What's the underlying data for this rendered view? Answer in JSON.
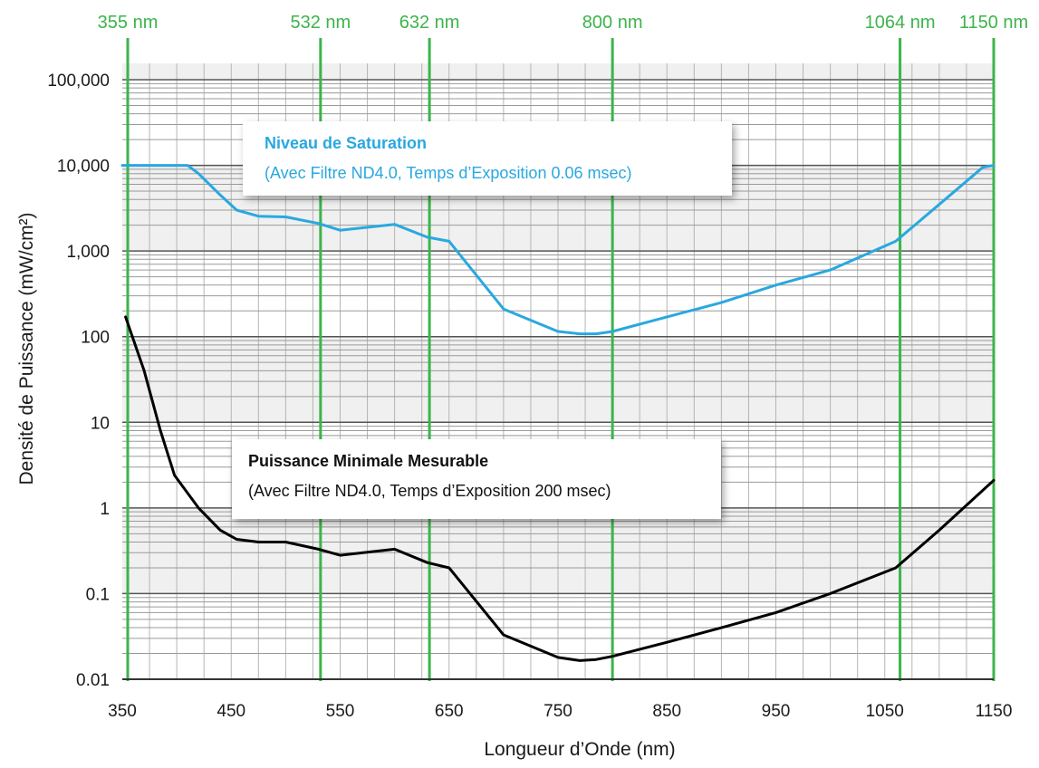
{
  "chart_data": {
    "type": "line",
    "title": "",
    "xlabel": "Longueur d’Onde (nm)",
    "ylabel": "Densité de Puissance (mW/cm²)",
    "xlim": [
      350,
      1150
    ],
    "ylim": [
      0.01,
      100000
    ],
    "y_scale": "log",
    "grid": true,
    "x_tick_labels": [
      "350",
      "450",
      "550",
      "650",
      "750",
      "850",
      "950",
      "1050",
      "1150"
    ],
    "y_tick_labels": [
      "0.01",
      "0.1",
      "1",
      "10",
      "100",
      "1,000",
      "10,000",
      "100,000"
    ],
    "y_ticks": [
      0.01,
      0.1,
      1,
      10,
      100,
      1000,
      10000,
      100000
    ],
    "reference_wavelengths": [
      {
        "value": 355,
        "label": "355 nm"
      },
      {
        "value": 532,
        "label": "532 nm"
      },
      {
        "value": 632,
        "label": "632 nm"
      },
      {
        "value": 800,
        "label": "800 nm"
      },
      {
        "value": 1064,
        "label": "1064 nm"
      },
      {
        "value": 1150,
        "label": "1150 nm"
      }
    ],
    "series": [
      {
        "name": "Niveau de Saturation",
        "note": "(Avec Filtre ND4.0, Temps d’Exposition 0.06 msec)",
        "color": "#29a8df",
        "x": [
          350,
          410,
          420,
          440,
          455,
          475,
          500,
          530,
          550,
          600,
          630,
          650,
          700,
          750,
          770,
          785,
          800,
          850,
          900,
          950,
          1000,
          1060,
          1100,
          1140,
          1150
        ],
        "y": [
          10000,
          10000,
          8000,
          4500,
          3000,
          2550,
          2500,
          2100,
          1750,
          2050,
          1450,
          1300,
          210,
          115,
          108,
          108,
          115,
          170,
          250,
          400,
          600,
          1300,
          3500,
          9500,
          10000
        ]
      },
      {
        "name": "Puissance Minimale Mesurable",
        "note": "(Avec Filtre ND4.0, Temps d’Exposition 200 msec)",
        "color": "#000000",
        "x": [
          353,
          370,
          385,
          398,
          420,
          440,
          455,
          475,
          500,
          530,
          550,
          600,
          630,
          650,
          700,
          750,
          770,
          785,
          800,
          850,
          900,
          950,
          1000,
          1060,
          1100,
          1150
        ],
        "y": [
          170,
          40,
          8,
          2.4,
          1.0,
          0.55,
          0.43,
          0.4,
          0.4,
          0.33,
          0.28,
          0.33,
          0.23,
          0.2,
          0.033,
          0.018,
          0.0165,
          0.017,
          0.0185,
          0.027,
          0.04,
          0.06,
          0.1,
          0.2,
          0.55,
          2.1
        ]
      }
    ]
  }
}
